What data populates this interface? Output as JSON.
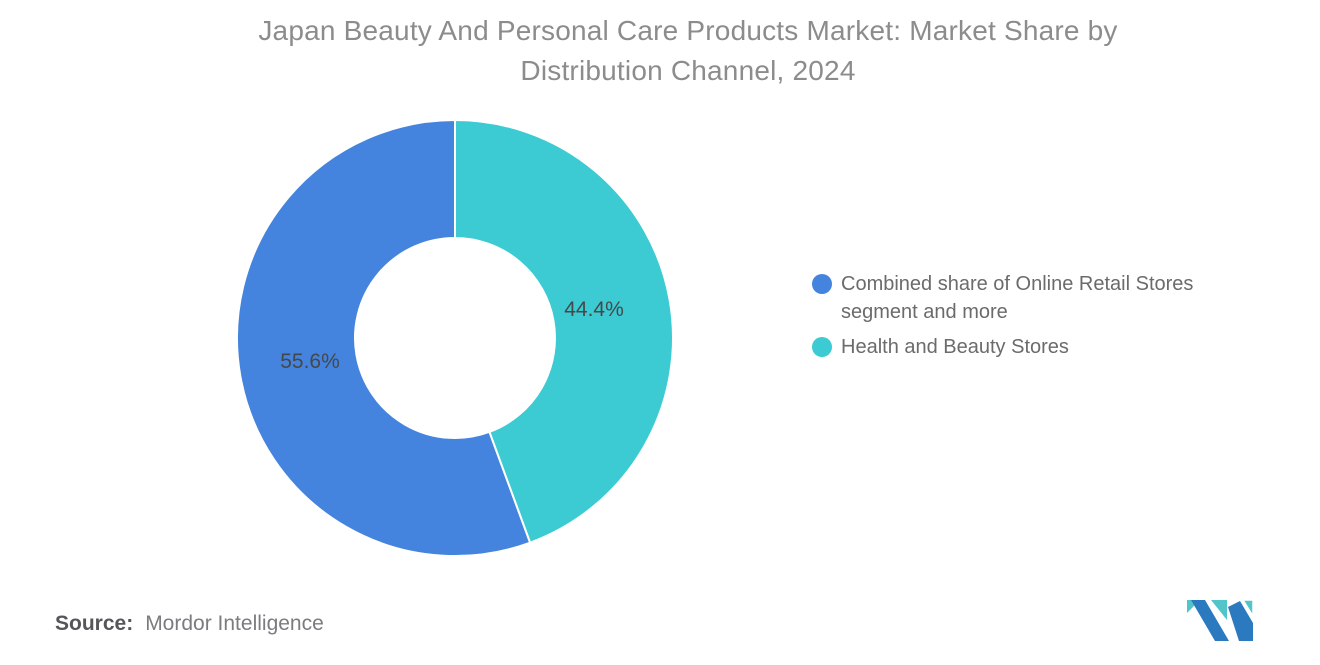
{
  "title": "Japan Beauty And Personal Care Products Market: Market Share by Distribution Channel, 2024",
  "chart_data": {
    "type": "pie",
    "subtype": "donut",
    "title": "Japan Beauty And Personal Care Products Market: Market Share by Distribution Channel, 2024",
    "start_angle_deg": -90,
    "direction": "counterclockwise",
    "inner_radius_ratio": 0.46,
    "legend_position": "right",
    "slices": [
      {
        "name": "Combined share of Online Retail Stores segment and more",
        "value": 55.6,
        "label": "55.6%",
        "color": "#4484de"
      },
      {
        "name": "Health and Beauty Stores",
        "value": 44.4,
        "label": "44.4%",
        "color": "#3ccbd2"
      }
    ]
  },
  "source": {
    "prefix": "Source:",
    "name": "Mordor Intelligence"
  },
  "logo": {
    "name": "mordor-intelligence-logo",
    "teal": "#52c5cb",
    "blue": "#2b79be"
  }
}
